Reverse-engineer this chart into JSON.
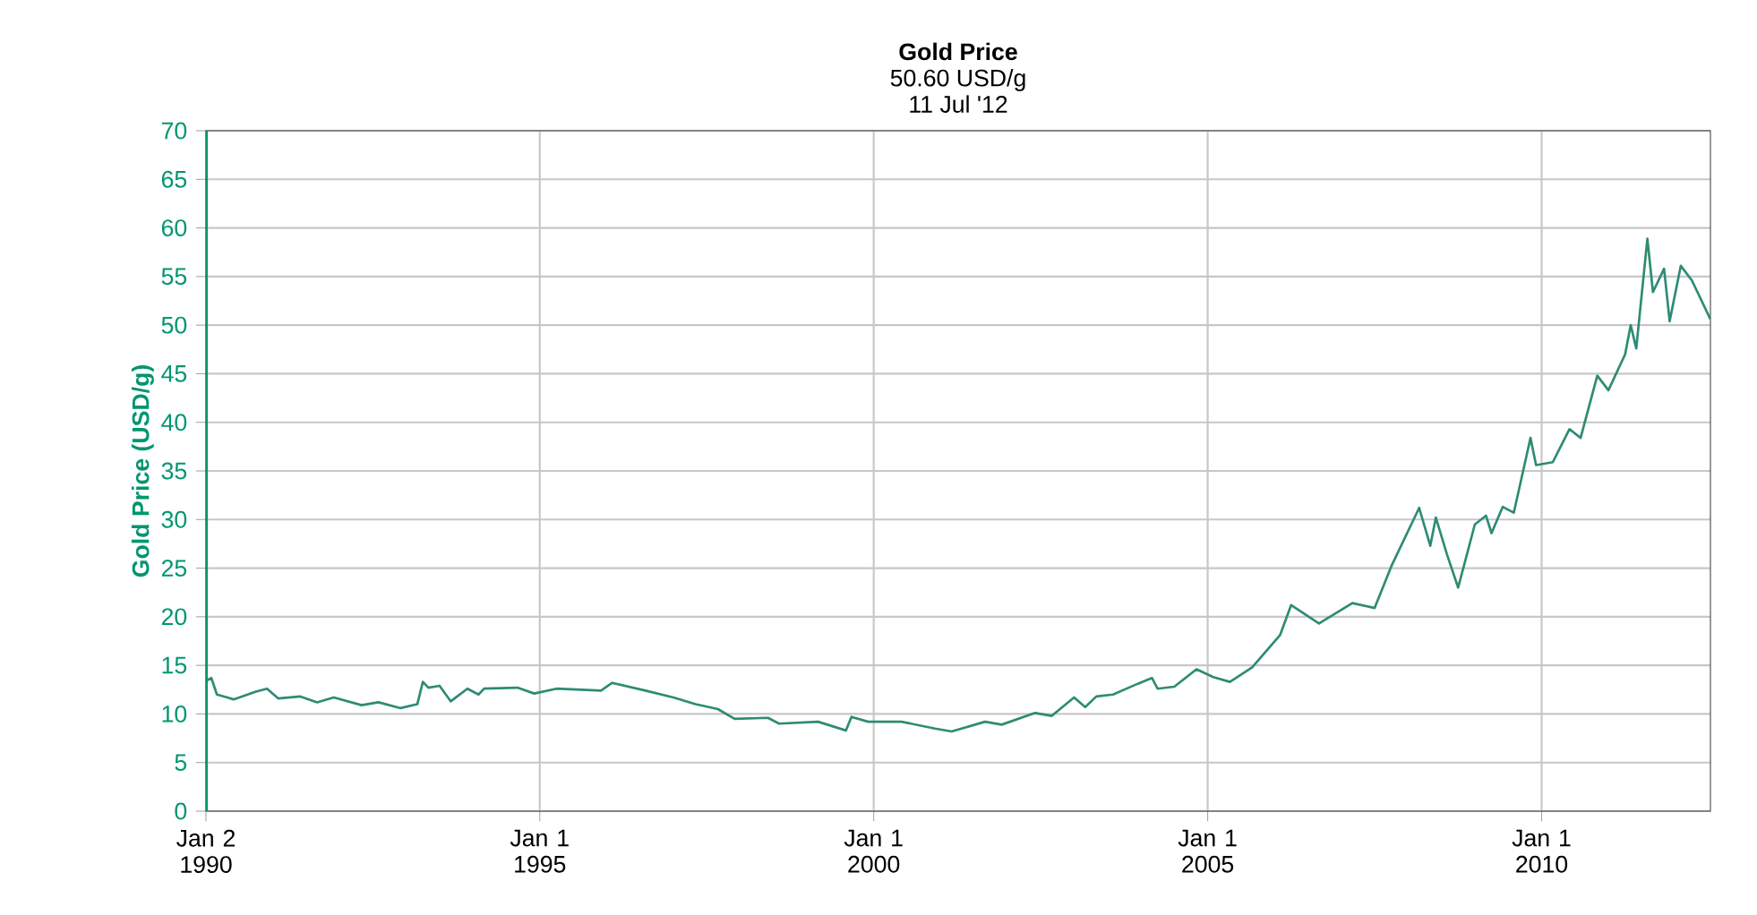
{
  "chart_data": {
    "type": "line",
    "title": "Gold Price",
    "subtitle": "50.60 USD/g",
    "annotations": [
      "11 Jul '12"
    ],
    "ylabel": "Gold Price (USD/g)",
    "x": [
      "1990-01-02",
      "1990-02",
      "1990-03",
      "1990-06",
      "1990-10",
      "1990-12",
      "1991-02",
      "1991-06",
      "1991-09",
      "1991-12",
      "1992-05",
      "1992-08",
      "1992-12",
      "1993-03",
      "1993-04",
      "1993-05",
      "1993-07",
      "1993-09",
      "1993-12",
      "1994-02",
      "1994-03",
      "1994-09",
      "1994-12",
      "1995-04",
      "1995-12",
      "1996-02",
      "1996-08",
      "1997-01",
      "1997-05",
      "1997-09",
      "1997-12",
      "1998-06",
      "1998-08",
      "1999-03",
      "1999-08",
      "1999-09",
      "1999-12",
      "2000-06",
      "2000-12",
      "2001-03",
      "2001-09",
      "2001-12",
      "2002-06",
      "2002-09",
      "2003-01",
      "2003-03",
      "2003-05",
      "2003-08",
      "2003-12",
      "2004-03",
      "2004-04",
      "2004-07",
      "2004-11",
      "2005-02",
      "2005-05",
      "2005-09",
      "2006-02",
      "2006-04",
      "2006-09",
      "2007-03",
      "2007-07",
      "2007-10",
      "2008-03",
      "2008-05",
      "2008-06",
      "2008-08",
      "2008-10",
      "2009-01",
      "2009-03",
      "2009-04",
      "2009-06",
      "2009-08",
      "2009-11",
      "2009-12",
      "2010-03",
      "2010-06",
      "2010-08",
      "2010-11",
      "2011-01",
      "2011-04",
      "2011-05",
      "2011-06",
      "2011-08",
      "2011-09",
      "2011-11",
      "2011-12",
      "2012-02",
      "2012-04",
      "2012-07-11"
    ],
    "series": [
      {
        "color": "#2e8b74",
        "values": [
          13.4,
          13.7,
          12.0,
          11.5,
          12.3,
          12.6,
          11.6,
          11.8,
          11.2,
          11.7,
          10.9,
          11.2,
          10.6,
          11.0,
          13.3,
          12.7,
          12.9,
          11.3,
          12.6,
          12.0,
          12.6,
          12.7,
          12.1,
          12.6,
          12.4,
          13.2,
          12.4,
          11.7,
          11.0,
          10.5,
          9.5,
          9.6,
          9.0,
          9.2,
          8.3,
          9.7,
          9.2,
          9.2,
          8.5,
          8.2,
          9.2,
          8.9,
          10.1,
          9.8,
          11.7,
          10.7,
          11.8,
          12.0,
          13.0,
          13.7,
          12.6,
          12.8,
          14.6,
          13.8,
          13.3,
          14.8,
          18.1,
          21.2,
          19.3,
          21.4,
          20.9,
          25.2,
          31.2,
          27.3,
          30.2,
          26.4,
          23.0,
          29.5,
          30.4,
          28.6,
          31.3,
          30.7,
          38.4,
          35.6,
          35.9,
          39.3,
          38.4,
          44.8,
          43.3,
          47.0,
          50.0,
          47.6,
          58.9,
          53.4,
          55.8,
          50.4,
          56.1,
          54.6,
          50.6
        ]
      }
    ],
    "xlim": [
      "1990-01-02",
      "2012-07-11"
    ],
    "xticks": [
      {
        "value": "1990-01-02",
        "label": "Jan 2 1990"
      },
      {
        "value": "1995-01-01",
        "label": "Jan 1 1995"
      },
      {
        "value": "2000-01-01",
        "label": "Jan 1 2000"
      },
      {
        "value": "2005-01-01",
        "label": "Jan 1 2005"
      },
      {
        "value": "2010-01-01",
        "label": "Jan 1 2010"
      }
    ],
    "ylim": [
      0,
      70
    ],
    "yticks": [
      0,
      5,
      10,
      15,
      20,
      25,
      30,
      35,
      40,
      45,
      50,
      55,
      60,
      65,
      70
    ],
    "grid": true,
    "marker": "none",
    "line_style": "solid"
  }
}
